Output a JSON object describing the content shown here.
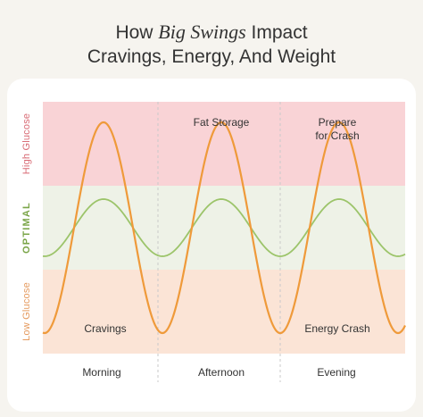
{
  "title": {
    "prefix": "How ",
    "italic": "Big Swings",
    "suffix": " Impact",
    "line2": "Cravings, Energy, And Weight"
  },
  "zones": {
    "high": "High Glucose",
    "optimal": "OPTIMAL",
    "low": "Low Glucose"
  },
  "annotations": {
    "fat_storage": "Fat Storage",
    "prepare_line1": "Prepare",
    "prepare_line2": "for Crash",
    "cravings": "Cravings",
    "energy_crash": "Energy Crash"
  },
  "times": [
    "Morning",
    "Afternoon",
    "Evening"
  ],
  "colors": {
    "high_band": "#f9d3d6",
    "optimal_band": "#eef2e7",
    "low_band": "#fbe4d6",
    "big_swing_curve": "#ef9a3a",
    "stable_curve": "#9cc46a"
  }
}
